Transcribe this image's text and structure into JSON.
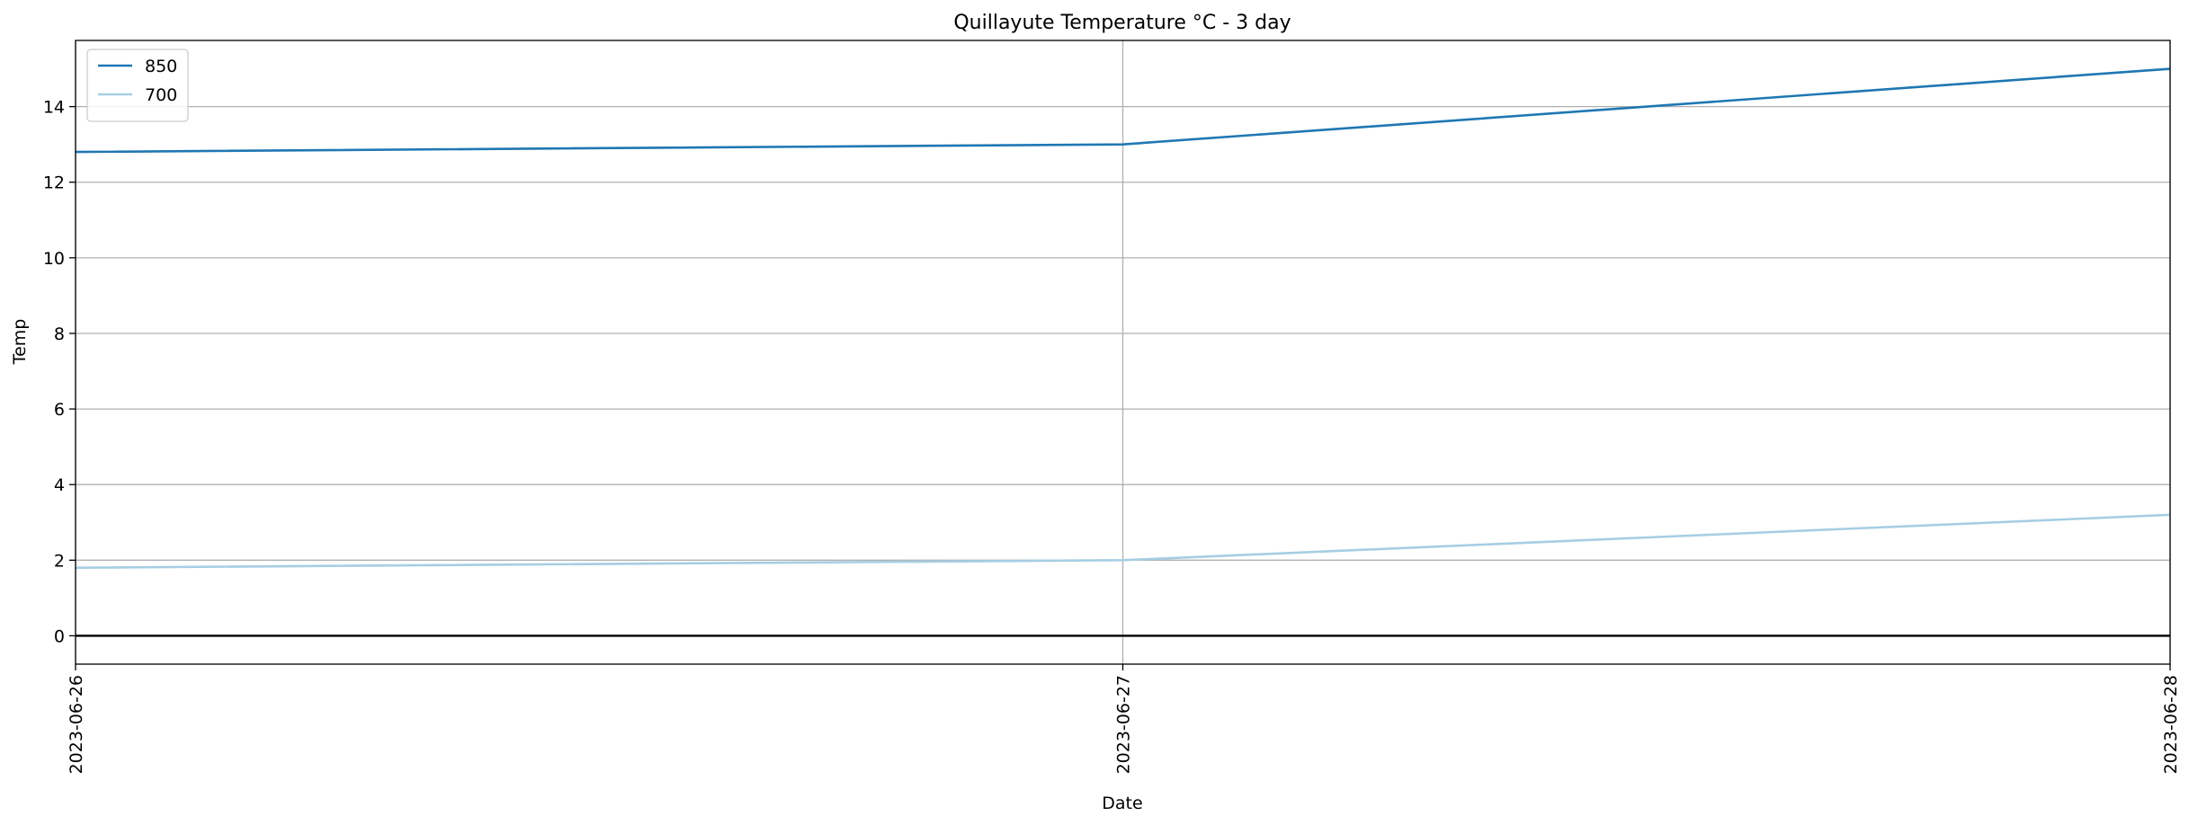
{
  "chart_data": {
    "type": "line",
    "title": "Quillayute Temperature °C - 3 day",
    "xlabel": "Date",
    "ylabel": "Temp",
    "x": [
      "2023-06-26",
      "2023-06-27",
      "2023-06-28"
    ],
    "series": [
      {
        "name": "850",
        "values": [
          12.8,
          13.0,
          15.0
        ],
        "color": "#1f77b4"
      },
      {
        "name": "700",
        "values": [
          1.8,
          2.0,
          3.2
        ],
        "color": "#a6cee3"
      }
    ],
    "ylim": [
      -0.75,
      15.75
    ],
    "yticks": [
      0,
      2,
      4,
      6,
      8,
      10,
      12,
      14
    ],
    "zero_line": true,
    "zero_line_color": "#000000",
    "grid": "horizontal-and-vertical",
    "legend": "top-left"
  }
}
